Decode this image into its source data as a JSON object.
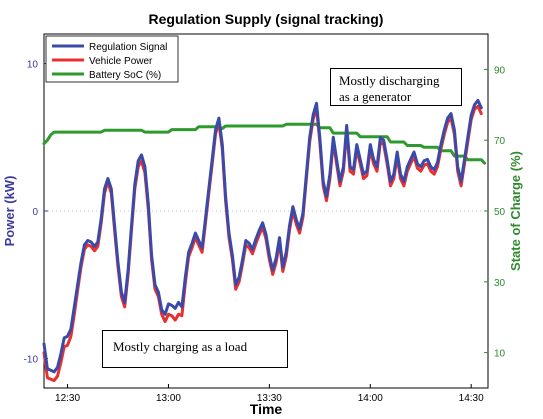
{
  "chart_data": {
    "type": "line",
    "title": "Regulation Supply (signal tracking)",
    "xlabel": "Time",
    "ylabel_left": "Power (kW)",
    "ylabel_right": "State of Charge (%)",
    "xlim": [
      "12:23",
      "14:35"
    ],
    "ylim_left": [
      -12,
      12
    ],
    "ylim_right": [
      0,
      100
    ],
    "x_ticks": [
      "12:30",
      "13:00",
      "13:30",
      "14:00",
      "14:30"
    ],
    "y_ticks_left": [
      "-10",
      "0",
      "10"
    ],
    "y_ticks_right": [
      "10",
      "30",
      "50",
      "70",
      "90"
    ],
    "legend_position": "top-left",
    "colors": {
      "left_axis": "#3a3aa0",
      "right_axis": "#2e8b2e",
      "zero_line": "#c8c8c8"
    },
    "series": [
      {
        "name": "Regulation Signal",
        "axis": "left",
        "color": "#3a4aa8",
        "points": [
          [
            "12:23",
            -9.0
          ],
          [
            "12:24",
            -10.7
          ],
          [
            "12:26",
            -10.9
          ],
          [
            "12:27",
            -10.6
          ],
          [
            "12:28",
            -9.7
          ],
          [
            "12:29",
            -8.6
          ],
          [
            "12:30",
            -8.5
          ],
          [
            "12:31",
            -8.0
          ],
          [
            "12:32",
            -6.5
          ],
          [
            "12:33",
            -5.0
          ],
          [
            "12:34",
            -3.5
          ],
          [
            "12:35",
            -2.3
          ],
          [
            "12:36",
            -2.0
          ],
          [
            "12:37",
            -2.1
          ],
          [
            "12:38",
            -2.4
          ],
          [
            "12:39",
            -2.1
          ],
          [
            "12:40",
            -0.5
          ],
          [
            "12:41",
            1.5
          ],
          [
            "12:42",
            2.2
          ],
          [
            "12:43",
            1.5
          ],
          [
            "12:44",
            -1.0
          ],
          [
            "12:45",
            -3.5
          ],
          [
            "12:46",
            -5.5
          ],
          [
            "12:47",
            -6.2
          ],
          [
            "12:48",
            -4.0
          ],
          [
            "12:49",
            -1.0
          ],
          [
            "12:50",
            1.8
          ],
          [
            "12:51",
            3.4
          ],
          [
            "12:52",
            3.8
          ],
          [
            "12:53",
            3.0
          ],
          [
            "12:54",
            0.5
          ],
          [
            "12:55",
            -3.0
          ],
          [
            "12:56",
            -5.0
          ],
          [
            "12:57",
            -5.5
          ],
          [
            "12:58",
            -6.7
          ],
          [
            "12:59",
            -7.0
          ],
          [
            "13:00",
            -6.3
          ],
          [
            "13:01",
            -6.4
          ],
          [
            "13:02",
            -6.6
          ],
          [
            "13:03",
            -6.2
          ],
          [
            "13:04",
            -6.5
          ],
          [
            "13:05",
            -4.5
          ],
          [
            "13:06",
            -2.8
          ],
          [
            "13:07",
            -2.2
          ],
          [
            "13:08",
            -1.5
          ],
          [
            "13:09",
            -2.0
          ],
          [
            "13:10",
            -2.5
          ],
          [
            "13:11",
            -0.5
          ],
          [
            "13:12",
            1.5
          ],
          [
            "13:13",
            3.5
          ],
          [
            "13:14",
            5.5
          ],
          [
            "13:15",
            6.3
          ],
          [
            "13:16",
            4.5
          ],
          [
            "13:17",
            1.0
          ],
          [
            "13:18",
            -1.5
          ],
          [
            "13:19",
            -3.0
          ],
          [
            "13:20",
            -5.0
          ],
          [
            "13:21",
            -4.5
          ],
          [
            "13:22",
            -3.3
          ],
          [
            "13:23",
            -2.0
          ],
          [
            "13:24",
            -2.2
          ],
          [
            "13:25",
            -2.6
          ],
          [
            "13:26",
            -1.9
          ],
          [
            "13:27",
            -1.3
          ],
          [
            "13:28",
            -0.8
          ],
          [
            "13:29",
            -1.6
          ],
          [
            "13:30",
            -3.0
          ],
          [
            "13:31",
            -4.0
          ],
          [
            "13:32",
            -3.2
          ],
          [
            "13:33",
            -1.8
          ],
          [
            "13:34",
            -3.8
          ],
          [
            "13:35",
            -2.8
          ],
          [
            "13:36",
            -1.0
          ],
          [
            "13:37",
            0.3
          ],
          [
            "13:38",
            -0.6
          ],
          [
            "13:39",
            -1.2
          ],
          [
            "13:40",
            -0.1
          ],
          [
            "13:41",
            2.5
          ],
          [
            "13:42",
            5.0
          ],
          [
            "13:43",
            6.5
          ],
          [
            "13:44",
            7.3
          ],
          [
            "13:45",
            5.0
          ],
          [
            "13:46",
            2.0
          ],
          [
            "13:47",
            1.0
          ],
          [
            "13:48",
            2.5
          ],
          [
            "13:49",
            5.0
          ],
          [
            "13:50",
            3.5
          ],
          [
            "13:51",
            2.0
          ],
          [
            "13:52",
            3.0
          ],
          [
            "13:53",
            5.8
          ],
          [
            "13:54",
            3.0
          ],
          [
            "13:55",
            2.8
          ],
          [
            "13:56",
            4.5
          ],
          [
            "13:57",
            3.5
          ],
          [
            "13:58",
            2.5
          ],
          [
            "13:59",
            2.7
          ],
          [
            "14:00",
            4.5
          ],
          [
            "14:01",
            3.5
          ],
          [
            "14:02",
            3.0
          ],
          [
            "14:03",
            5.0
          ],
          [
            "14:04",
            4.8
          ],
          [
            "14:05",
            3.5
          ],
          [
            "14:06",
            2.0
          ],
          [
            "14:07",
            2.5
          ],
          [
            "14:08",
            4.0
          ],
          [
            "14:09",
            2.5
          ],
          [
            "14:10",
            2.0
          ],
          [
            "14:11",
            3.0
          ],
          [
            "14:12",
            3.5
          ],
          [
            "14:13",
            4.0
          ],
          [
            "14:14",
            3.2
          ],
          [
            "14:15",
            3.0
          ],
          [
            "14:16",
            3.4
          ],
          [
            "14:17",
            3.5
          ],
          [
            "14:18",
            3.0
          ],
          [
            "14:19",
            2.8
          ],
          [
            "14:20",
            3.3
          ],
          [
            "14:21",
            4.5
          ],
          [
            "14:22",
            5.5
          ],
          [
            "14:23",
            6.3
          ],
          [
            "14:24",
            6.6
          ],
          [
            "14:25",
            5.5
          ],
          [
            "14:26",
            3.0
          ],
          [
            "14:27",
            2.0
          ],
          [
            "14:28",
            3.5
          ],
          [
            "14:29",
            5.0
          ],
          [
            "14:30",
            6.5
          ],
          [
            "14:31",
            7.2
          ],
          [
            "14:32",
            7.5
          ],
          [
            "14:33",
            7.0
          ]
        ]
      },
      {
        "name": "Vehicle Power",
        "axis": "left",
        "color": "#e83030",
        "points": [
          [
            "12:23",
            -9.6
          ],
          [
            "12:24",
            -11.3
          ],
          [
            "12:26",
            -11.5
          ],
          [
            "12:27",
            -11.2
          ],
          [
            "12:28",
            -10.3
          ],
          [
            "12:29",
            -9.2
          ],
          [
            "12:30",
            -9.1
          ],
          [
            "12:31",
            -8.5
          ],
          [
            "12:32",
            -7.0
          ],
          [
            "12:33",
            -5.4
          ],
          [
            "12:34",
            -3.8
          ],
          [
            "12:35",
            -2.6
          ],
          [
            "12:36",
            -2.3
          ],
          [
            "12:37",
            -2.4
          ],
          [
            "12:38",
            -2.7
          ],
          [
            "12:39",
            -2.4
          ],
          [
            "12:40",
            -0.8
          ],
          [
            "12:41",
            1.2
          ],
          [
            "12:42",
            2.0
          ],
          [
            "12:43",
            1.2
          ],
          [
            "12:44",
            -1.3
          ],
          [
            "12:45",
            -3.8
          ],
          [
            "12:46",
            -5.8
          ],
          [
            "12:47",
            -6.5
          ],
          [
            "12:48",
            -4.3
          ],
          [
            "12:49",
            -1.3
          ],
          [
            "12:50",
            1.5
          ],
          [
            "12:51",
            3.0
          ],
          [
            "12:52",
            3.4
          ],
          [
            "12:53",
            2.6
          ],
          [
            "12:54",
            0.1
          ],
          [
            "12:55",
            -3.3
          ],
          [
            "12:56",
            -5.3
          ],
          [
            "12:57",
            -5.8
          ],
          [
            "12:58",
            -7.0
          ],
          [
            "12:59",
            -7.5
          ],
          [
            "13:00",
            -7.0
          ],
          [
            "13:01",
            -7.1
          ],
          [
            "13:02",
            -7.4
          ],
          [
            "13:03",
            -7.0
          ],
          [
            "13:04",
            -7.1
          ],
          [
            "13:05",
            -4.9
          ],
          [
            "13:06",
            -3.1
          ],
          [
            "13:07",
            -2.5
          ],
          [
            "13:08",
            -1.8
          ],
          [
            "13:09",
            -2.3
          ],
          [
            "13:10",
            -2.8
          ],
          [
            "13:11",
            -0.8
          ],
          [
            "13:12",
            1.2
          ],
          [
            "13:13",
            3.2
          ],
          [
            "13:14",
            5.2
          ],
          [
            "13:15",
            6.0
          ],
          [
            "13:16",
            4.2
          ],
          [
            "13:17",
            0.7
          ],
          [
            "13:18",
            -1.8
          ],
          [
            "13:19",
            -3.3
          ],
          [
            "13:20",
            -5.3
          ],
          [
            "13:21",
            -4.8
          ],
          [
            "13:22",
            -3.6
          ],
          [
            "13:23",
            -2.3
          ],
          [
            "13:24",
            -2.5
          ],
          [
            "13:25",
            -2.9
          ],
          [
            "13:26",
            -2.2
          ],
          [
            "13:27",
            -1.6
          ],
          [
            "13:28",
            -1.1
          ],
          [
            "13:29",
            -1.9
          ],
          [
            "13:30",
            -3.3
          ],
          [
            "13:31",
            -4.3
          ],
          [
            "13:32",
            -3.5
          ],
          [
            "13:33",
            -2.1
          ],
          [
            "13:34",
            -4.1
          ],
          [
            "13:35",
            -3.1
          ],
          [
            "13:36",
            -1.3
          ],
          [
            "13:37",
            0.0
          ],
          [
            "13:38",
            -0.9
          ],
          [
            "13:39",
            -1.5
          ],
          [
            "13:40",
            -0.4
          ],
          [
            "13:41",
            2.2
          ],
          [
            "13:42",
            4.7
          ],
          [
            "13:43",
            6.2
          ],
          [
            "13:44",
            7.0
          ],
          [
            "13:45",
            4.7
          ],
          [
            "13:46",
            1.7
          ],
          [
            "13:47",
            0.7
          ],
          [
            "13:48",
            2.2
          ],
          [
            "13:49",
            4.7
          ],
          [
            "13:50",
            3.2
          ],
          [
            "13:51",
            1.7
          ],
          [
            "13:52",
            2.7
          ],
          [
            "13:53",
            5.5
          ],
          [
            "13:54",
            2.7
          ],
          [
            "13:55",
            2.5
          ],
          [
            "13:56",
            4.2
          ],
          [
            "13:57",
            3.2
          ],
          [
            "13:58",
            2.2
          ],
          [
            "13:59",
            2.4
          ],
          [
            "14:00",
            4.2
          ],
          [
            "14:01",
            3.2
          ],
          [
            "14:02",
            2.7
          ],
          [
            "14:03",
            4.7
          ],
          [
            "14:04",
            4.5
          ],
          [
            "14:05",
            3.2
          ],
          [
            "14:06",
            1.7
          ],
          [
            "14:07",
            2.2
          ],
          [
            "14:08",
            3.7
          ],
          [
            "14:09",
            2.2
          ],
          [
            "14:10",
            1.7
          ],
          [
            "14:11",
            2.7
          ],
          [
            "14:12",
            3.2
          ],
          [
            "14:13",
            3.7
          ],
          [
            "14:14",
            2.9
          ],
          [
            "14:15",
            2.7
          ],
          [
            "14:16",
            3.1
          ],
          [
            "14:17",
            3.2
          ],
          [
            "14:18",
            2.7
          ],
          [
            "14:19",
            2.5
          ],
          [
            "14:20",
            3.0
          ],
          [
            "14:21",
            4.2
          ],
          [
            "14:22",
            5.2
          ],
          [
            "14:23",
            6.0
          ],
          [
            "14:24",
            6.3
          ],
          [
            "14:25",
            5.2
          ],
          [
            "14:26",
            2.7
          ],
          [
            "14:27",
            1.7
          ],
          [
            "14:28",
            3.2
          ],
          [
            "14:29",
            4.7
          ],
          [
            "14:30",
            6.2
          ],
          [
            "14:31",
            6.9
          ],
          [
            "14:32",
            7.1
          ],
          [
            "14:33",
            6.6
          ]
        ]
      },
      {
        "name": "Battery SoC (%)",
        "axis": "right",
        "color": "#2e9a2e",
        "points": [
          [
            "12:23",
            69.0
          ],
          [
            "12:24",
            70.0
          ],
          [
            "12:25",
            71.5
          ],
          [
            "12:26",
            72.3
          ],
          [
            "12:40",
            72.3
          ],
          [
            "12:41",
            72.8
          ],
          [
            "12:52",
            72.8
          ],
          [
            "12:53",
            72.3
          ],
          [
            "13:00",
            72.3
          ],
          [
            "13:01",
            73.0
          ],
          [
            "13:08",
            73.0
          ],
          [
            "13:09",
            73.8
          ],
          [
            "13:15",
            73.8
          ],
          [
            "13:16",
            73.3
          ],
          [
            "13:17",
            74.0
          ],
          [
            "13:34",
            74.0
          ],
          [
            "13:35",
            74.5
          ],
          [
            "13:44",
            74.5
          ],
          [
            "13:45",
            73.5
          ],
          [
            "13:48",
            73.5
          ],
          [
            "13:49",
            72.0
          ],
          [
            "13:56",
            72.0
          ],
          [
            "13:57",
            71.0
          ],
          [
            "14:05",
            71.0
          ],
          [
            "14:06",
            69.5
          ],
          [
            "14:10",
            69.5
          ],
          [
            "14:11",
            68.5
          ],
          [
            "14:15",
            68.5
          ],
          [
            "14:16",
            68.0
          ],
          [
            "14:20",
            68.0
          ],
          [
            "14:21",
            67.0
          ],
          [
            "14:24",
            67.0
          ],
          [
            "14:25",
            65.5
          ],
          [
            "14:28",
            65.5
          ],
          [
            "14:29",
            64.5
          ],
          [
            "14:33",
            64.5
          ],
          [
            "14:34",
            63.5
          ]
        ]
      }
    ],
    "annotations": [
      {
        "text": "Mostly discharging as a generator"
      },
      {
        "text": "Mostly charging as a load"
      }
    ]
  }
}
